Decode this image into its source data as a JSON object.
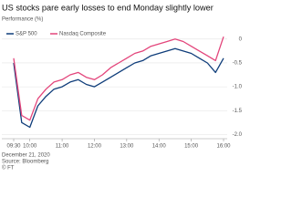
{
  "chart_data": {
    "type": "line",
    "title": "US stocks pare early losses to end Monday slightly lower",
    "subtitle": "Performance (%)",
    "x": [
      "09:30",
      "09:45",
      "10:00",
      "10:15",
      "10:30",
      "10:45",
      "11:00",
      "11:15",
      "11:30",
      "11:45",
      "12:00",
      "12:15",
      "12:30",
      "12:45",
      "13:00",
      "13:15",
      "13:30",
      "13:45",
      "14:00",
      "14:15",
      "14:30",
      "14:45",
      "15:00",
      "15:15",
      "15:30",
      "15:45",
      "16:00"
    ],
    "xlim": [
      "09:30",
      "16:00"
    ],
    "xticks": [
      "09:30",
      "10:00",
      "11:00",
      "12:00",
      "13:00",
      "14:00",
      "15:00",
      "16:00"
    ],
    "ylim": [
      -2.05,
      0.15
    ],
    "yticks": [
      0,
      -0.5,
      {
        "value": -1,
        "label": "-1.0"
      },
      -1.5,
      {
        "value": -2,
        "label": "-2.0"
      }
    ],
    "grid": true,
    "legend": "top-left",
    "series": [
      {
        "name": "S&P 500",
        "color": "#0f3d7a",
        "values": [
          -0.5,
          -1.75,
          -1.85,
          -1.4,
          -1.2,
          -1.05,
          -1.0,
          -0.9,
          -0.85,
          -0.95,
          -1.0,
          -0.9,
          -0.8,
          -0.7,
          -0.6,
          -0.5,
          -0.45,
          -0.35,
          -0.3,
          -0.25,
          -0.2,
          -0.25,
          -0.3,
          -0.4,
          -0.5,
          -0.7,
          -0.4
        ]
      },
      {
        "name": "Nasdaq Composite",
        "color": "#e3457b",
        "values": [
          -0.4,
          -1.6,
          -1.7,
          -1.25,
          -1.05,
          -0.9,
          -0.85,
          -0.75,
          -0.7,
          -0.8,
          -0.85,
          -0.75,
          -0.6,
          -0.5,
          -0.4,
          -0.3,
          -0.25,
          -0.15,
          -0.1,
          -0.05,
          0.0,
          -0.05,
          -0.15,
          -0.25,
          -0.35,
          -0.45,
          0.05
        ]
      }
    ],
    "date": "December 21, 2020",
    "source": "Source: Bloomberg",
    "credit": "© FT"
  }
}
